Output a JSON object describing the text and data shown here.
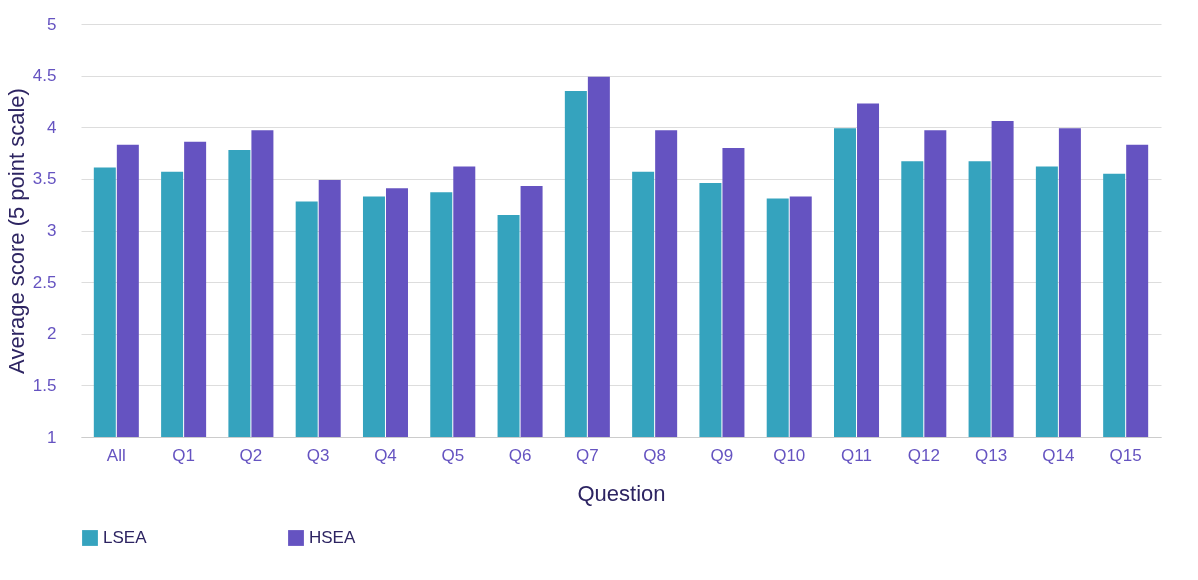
{
  "chart_data": {
    "type": "bar",
    "xlabel": "Question",
    "ylabel": "Average score (5 point scale)",
    "categories": [
      "All",
      "Q1",
      "Q2",
      "Q3",
      "Q4",
      "Q5",
      "Q6",
      "Q7",
      "Q8",
      "Q9",
      "Q10",
      "Q11",
      "Q12",
      "Q13",
      "Q14",
      "Q15"
    ],
    "series": [
      {
        "name": "LSEA",
        "color": "#35a3be",
        "values": [
          3.61,
          3.57,
          3.78,
          3.28,
          3.33,
          3.37,
          3.15,
          4.35,
          3.57,
          3.46,
          3.31,
          3.99,
          3.67,
          3.67,
          3.62,
          3.55
        ]
      },
      {
        "name": "HSEA",
        "color": "#6553c1",
        "values": [
          3.83,
          3.86,
          3.97,
          3.49,
          3.41,
          3.62,
          3.43,
          4.49,
          3.97,
          3.8,
          3.33,
          4.23,
          3.97,
          4.06,
          3.99,
          3.83
        ]
      }
    ],
    "ylim": [
      1,
      5
    ],
    "yticks": [
      1,
      1.5,
      2,
      2.5,
      3,
      3.5,
      4,
      4.5,
      5
    ],
    "grid": "y",
    "legend": "bottom"
  }
}
